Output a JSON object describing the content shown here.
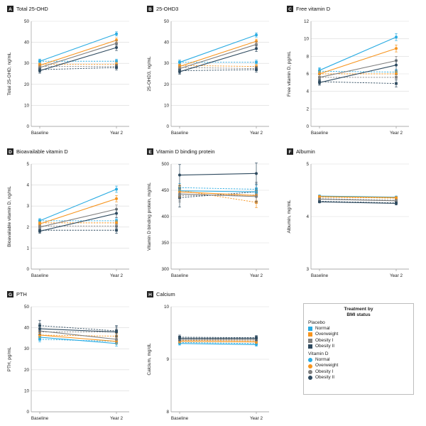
{
  "colors": {
    "normal": "#29abe2",
    "overweight": "#f7941d",
    "obesity_1": "#808080",
    "obesity_2": "#2e4a5f",
    "badge": "#222222"
  },
  "legend": {
    "title_line1": "Treatment by",
    "title_line2": "BMI status",
    "groups": [
      {
        "label": "Placebo",
        "marker": "square",
        "items": [
          "Normal",
          "Overweight",
          "Obesity I",
          "Obesity II"
        ]
      },
      {
        "label": "Vitamin D",
        "marker": "circle",
        "items": [
          "Normal",
          "Overweight",
          "Obesity I",
          "Obesity II"
        ]
      }
    ]
  },
  "chart_data": [
    {
      "type": "line",
      "letter": "A",
      "title": "Total 25-OHD",
      "x": [
        "Baseline",
        "Year 2"
      ],
      "ylabel": "Total 25-OHD, ng/mL",
      "ylim": [
        0,
        50
      ],
      "yticks": [
        0,
        10,
        20,
        30,
        40,
        50
      ],
      "grid": true,
      "series": [
        {
          "group": "placebo",
          "bmi": "normal",
          "values": [
            31,
            31
          ],
          "err": [
            1,
            1
          ]
        },
        {
          "group": "placebo",
          "bmi": "overweight",
          "values": [
            29.5,
            29.5
          ],
          "err": [
            1,
            1
          ]
        },
        {
          "group": "placebo",
          "bmi": "obesity_1",
          "values": [
            28.5,
            28.5
          ],
          "err": [
            1,
            1
          ]
        },
        {
          "group": "placebo",
          "bmi": "obesity_2",
          "values": [
            27,
            28
          ],
          "err": [
            1.2,
            1.2
          ]
        },
        {
          "group": "vitamin_d",
          "bmi": "normal",
          "values": [
            31,
            44
          ],
          "err": [
            1,
            1
          ]
        },
        {
          "group": "vitamin_d",
          "bmi": "overweight",
          "values": [
            29,
            41
          ],
          "err": [
            1,
            1
          ]
        },
        {
          "group": "vitamin_d",
          "bmi": "obesity_1",
          "values": [
            28,
            39.5
          ],
          "err": [
            1,
            1.2
          ]
        },
        {
          "group": "vitamin_d",
          "bmi": "obesity_2",
          "values": [
            26.5,
            37.5
          ],
          "err": [
            1.2,
            1.4
          ]
        }
      ]
    },
    {
      "type": "line",
      "letter": "B",
      "title": "25-OHD3",
      "x": [
        "Baseline",
        "Year 2"
      ],
      "ylabel": "25-OHD3, ng/mL",
      "ylim": [
        0,
        50
      ],
      "yticks": [
        0,
        10,
        20,
        30,
        40,
        50
      ],
      "grid": true,
      "series": [
        {
          "group": "placebo",
          "bmi": "normal",
          "values": [
            30.5,
            30.5
          ],
          "err": [
            1,
            1
          ]
        },
        {
          "group": "placebo",
          "bmi": "overweight",
          "values": [
            29,
            28.5
          ],
          "err": [
            1,
            1
          ]
        },
        {
          "group": "placebo",
          "bmi": "obesity_1",
          "values": [
            28,
            27.5
          ],
          "err": [
            1,
            1
          ]
        },
        {
          "group": "placebo",
          "bmi": "obesity_2",
          "values": [
            26.5,
            27
          ],
          "err": [
            1.2,
            1.2
          ]
        },
        {
          "group": "vitamin_d",
          "bmi": "normal",
          "values": [
            30.5,
            43.5
          ],
          "err": [
            1,
            1
          ]
        },
        {
          "group": "vitamin_d",
          "bmi": "overweight",
          "values": [
            28.5,
            40.5
          ],
          "err": [
            1,
            1
          ]
        },
        {
          "group": "vitamin_d",
          "bmi": "obesity_1",
          "values": [
            27.5,
            39
          ],
          "err": [
            1,
            1.2
          ]
        },
        {
          "group": "vitamin_d",
          "bmi": "obesity_2",
          "values": [
            26,
            37
          ],
          "err": [
            1.2,
            1.4
          ]
        }
      ]
    },
    {
      "type": "line",
      "letter": "C",
      "title": "Free vitamin D",
      "x": [
        "Baseline",
        "Year 2"
      ],
      "ylabel": "Free vitamin D, pg/mL",
      "ylim": [
        0,
        12
      ],
      "yticks": [
        0,
        2,
        4,
        6,
        8,
        10,
        12
      ],
      "grid": true,
      "series": [
        {
          "group": "placebo",
          "bmi": "normal",
          "values": [
            6.3,
            6.2
          ],
          "err": [
            0.3,
            0.3
          ]
        },
        {
          "group": "placebo",
          "bmi": "overweight",
          "values": [
            6.0,
            6.0
          ],
          "err": [
            0.3,
            0.3
          ]
        },
        {
          "group": "placebo",
          "bmi": "obesity_1",
          "values": [
            5.6,
            5.6
          ],
          "err": [
            0.3,
            0.3
          ]
        },
        {
          "group": "placebo",
          "bmi": "obesity_2",
          "values": [
            5.1,
            4.9
          ],
          "err": [
            0.3,
            0.4
          ]
        },
        {
          "group": "vitamin_d",
          "bmi": "normal",
          "values": [
            6.4,
            10.2
          ],
          "err": [
            0.3,
            0.4
          ]
        },
        {
          "group": "vitamin_d",
          "bmi": "overweight",
          "values": [
            6.0,
            8.9
          ],
          "err": [
            0.3,
            0.4
          ]
        },
        {
          "group": "vitamin_d",
          "bmi": "obesity_1",
          "values": [
            5.6,
            7.5
          ],
          "err": [
            0.3,
            0.5
          ]
        },
        {
          "group": "vitamin_d",
          "bmi": "obesity_2",
          "values": [
            5.0,
            7.0
          ],
          "err": [
            0.3,
            0.6
          ]
        }
      ]
    },
    {
      "type": "line",
      "letter": "D",
      "title": "Bioavailable vitamin D",
      "x": [
        "Baseline",
        "Year 2"
      ],
      "ylabel": "Bioavailable vitamin D, ng/mL",
      "ylim": [
        0,
        5
      ],
      "yticks": [
        0,
        1,
        2,
        3,
        4,
        5
      ],
      "grid": true,
      "series": [
        {
          "group": "placebo",
          "bmi": "normal",
          "values": [
            2.3,
            2.3
          ],
          "err": [
            0.1,
            0.1
          ]
        },
        {
          "group": "placebo",
          "bmi": "overweight",
          "values": [
            2.2,
            2.2
          ],
          "err": [
            0.1,
            0.1
          ]
        },
        {
          "group": "placebo",
          "bmi": "obesity_1",
          "values": [
            2.05,
            2.05
          ],
          "err": [
            0.1,
            0.1
          ]
        },
        {
          "group": "placebo",
          "bmi": "obesity_2",
          "values": [
            1.85,
            1.85
          ],
          "err": [
            0.1,
            0.15
          ]
        },
        {
          "group": "vitamin_d",
          "bmi": "normal",
          "values": [
            2.3,
            3.8
          ],
          "err": [
            0.1,
            0.15
          ]
        },
        {
          "group": "vitamin_d",
          "bmi": "overweight",
          "values": [
            2.15,
            3.35
          ],
          "err": [
            0.1,
            0.15
          ]
        },
        {
          "group": "vitamin_d",
          "bmi": "obesity_1",
          "values": [
            2.0,
            2.85
          ],
          "err": [
            0.1,
            0.2
          ]
        },
        {
          "group": "vitamin_d",
          "bmi": "obesity_2",
          "values": [
            1.8,
            2.65
          ],
          "err": [
            0.1,
            0.2
          ]
        }
      ]
    },
    {
      "type": "line",
      "letter": "E",
      "title": "Vitamin D binding protein",
      "x": [
        "Baseline",
        "Year 2"
      ],
      "ylabel": "Vitamin D binding protein, mg/mL",
      "ylim": [
        300,
        500
      ],
      "yticks": [
        300,
        350,
        400,
        450,
        500
      ],
      "grid": true,
      "series": [
        {
          "group": "placebo",
          "bmi": "normal",
          "values": [
            455,
            452
          ],
          "err": [
            8,
            8
          ]
        },
        {
          "group": "placebo",
          "bmi": "overweight",
          "values": [
            450,
            427
          ],
          "err": [
            10,
            10
          ]
        },
        {
          "group": "placebo",
          "bmi": "obesity_1",
          "values": [
            440,
            441
          ],
          "err": [
            12,
            12
          ]
        },
        {
          "group": "placebo",
          "bmi": "obesity_2",
          "values": [
            436,
            447
          ],
          "err": [
            18,
            18
          ]
        },
        {
          "group": "vitamin_d",
          "bmi": "normal",
          "values": [
            449,
            447
          ],
          "err": [
            8,
            8
          ]
        },
        {
          "group": "vitamin_d",
          "bmi": "overweight",
          "values": [
            447,
            440
          ],
          "err": [
            10,
            10
          ]
        },
        {
          "group": "vitamin_d",
          "bmi": "obesity_1",
          "values": [
            443,
            438
          ],
          "err": [
            12,
            12
          ]
        },
        {
          "group": "vitamin_d",
          "bmi": "obesity_2",
          "values": [
            479,
            482
          ],
          "err": [
            20,
            20
          ]
        }
      ]
    },
    {
      "type": "line",
      "letter": "F",
      "title": "Albumin",
      "x": [
        "Baseline",
        "Year 2"
      ],
      "ylabel": "Albumin, mg/mL",
      "ylim": [
        3,
        5
      ],
      "yticks": [
        3,
        4,
        5
      ],
      "grid": true,
      "series": [
        {
          "group": "placebo",
          "bmi": "normal",
          "values": [
            4.38,
            4.36
          ],
          "err": [
            0.02,
            0.02
          ]
        },
        {
          "group": "placebo",
          "bmi": "overweight",
          "values": [
            4.37,
            4.35
          ],
          "err": [
            0.02,
            0.02
          ]
        },
        {
          "group": "placebo",
          "bmi": "obesity_1",
          "values": [
            4.34,
            4.31
          ],
          "err": [
            0.02,
            0.02
          ]
        },
        {
          "group": "placebo",
          "bmi": "obesity_2",
          "values": [
            4.29,
            4.26
          ],
          "err": [
            0.02,
            0.02
          ]
        },
        {
          "group": "vitamin_d",
          "bmi": "normal",
          "values": [
            4.39,
            4.37
          ],
          "err": [
            0.02,
            0.02
          ]
        },
        {
          "group": "vitamin_d",
          "bmi": "overweight",
          "values": [
            4.38,
            4.36
          ],
          "err": [
            0.02,
            0.02
          ]
        },
        {
          "group": "vitamin_d",
          "bmi": "obesity_1",
          "values": [
            4.33,
            4.3
          ],
          "err": [
            0.02,
            0.02
          ]
        },
        {
          "group": "vitamin_d",
          "bmi": "obesity_2",
          "values": [
            4.28,
            4.25
          ],
          "err": [
            0.02,
            0.03
          ]
        }
      ]
    },
    {
      "type": "line",
      "letter": "G",
      "title": "PTH",
      "x": [
        "Baseline",
        "Year 2"
      ],
      "ylabel": "PTH, pg/mL",
      "ylim": [
        0,
        50
      ],
      "yticks": [
        0,
        10,
        20,
        30,
        40,
        50
      ],
      "grid": true,
      "series": [
        {
          "group": "placebo",
          "bmi": "normal",
          "values": [
            34.5,
            33.5
          ],
          "err": [
            1.2,
            1.2
          ]
        },
        {
          "group": "placebo",
          "bmi": "overweight",
          "values": [
            36.5,
            36
          ],
          "err": [
            1.2,
            1.2
          ]
        },
        {
          "group": "placebo",
          "bmi": "obesity_1",
          "values": [
            38,
            38
          ],
          "err": [
            1.5,
            1.5
          ]
        },
        {
          "group": "placebo",
          "bmi": "obesity_2",
          "values": [
            41,
            38.5
          ],
          "err": [
            2.5,
            2.5
          ]
        },
        {
          "group": "vitamin_d",
          "bmi": "normal",
          "values": [
            35.5,
            32.5
          ],
          "err": [
            1.2,
            1.2
          ]
        },
        {
          "group": "vitamin_d",
          "bmi": "overweight",
          "values": [
            36.5,
            33.5
          ],
          "err": [
            1.2,
            1.2
          ]
        },
        {
          "group": "vitamin_d",
          "bmi": "obesity_1",
          "values": [
            38.5,
            34.5
          ],
          "err": [
            1.5,
            1.5
          ]
        },
        {
          "group": "vitamin_d",
          "bmi": "obesity_2",
          "values": [
            39.5,
            38
          ],
          "err": [
            2.5,
            2.5
          ]
        }
      ]
    },
    {
      "type": "line",
      "letter": "H",
      "title": "Calcium",
      "x": [
        "Baseline",
        "Year 2"
      ],
      "ylabel": "Calcium, mg/dL",
      "ylim": [
        8,
        10
      ],
      "yticks": [
        8,
        9,
        10
      ],
      "grid": true,
      "series": [
        {
          "group": "placebo",
          "bmi": "normal",
          "values": [
            9.32,
            9.3
          ],
          "err": [
            0.03,
            0.03
          ]
        },
        {
          "group": "placebo",
          "bmi": "overweight",
          "values": [
            9.36,
            9.35
          ],
          "err": [
            0.03,
            0.03
          ]
        },
        {
          "group": "placebo",
          "bmi": "obesity_1",
          "values": [
            9.39,
            9.38
          ],
          "err": [
            0.03,
            0.03
          ]
        },
        {
          "group": "placebo",
          "bmi": "obesity_2",
          "values": [
            9.42,
            9.41
          ],
          "err": [
            0.04,
            0.04
          ]
        },
        {
          "group": "vitamin_d",
          "bmi": "normal",
          "values": [
            9.3,
            9.28
          ],
          "err": [
            0.03,
            0.03
          ]
        },
        {
          "group": "vitamin_d",
          "bmi": "overweight",
          "values": [
            9.34,
            9.33
          ],
          "err": [
            0.03,
            0.03
          ]
        },
        {
          "group": "vitamin_d",
          "bmi": "obesity_1",
          "values": [
            9.37,
            9.37
          ],
          "err": [
            0.03,
            0.03
          ]
        },
        {
          "group": "vitamin_d",
          "bmi": "obesity_2",
          "values": [
            9.4,
            9.4
          ],
          "err": [
            0.04,
            0.04
          ]
        }
      ]
    }
  ]
}
